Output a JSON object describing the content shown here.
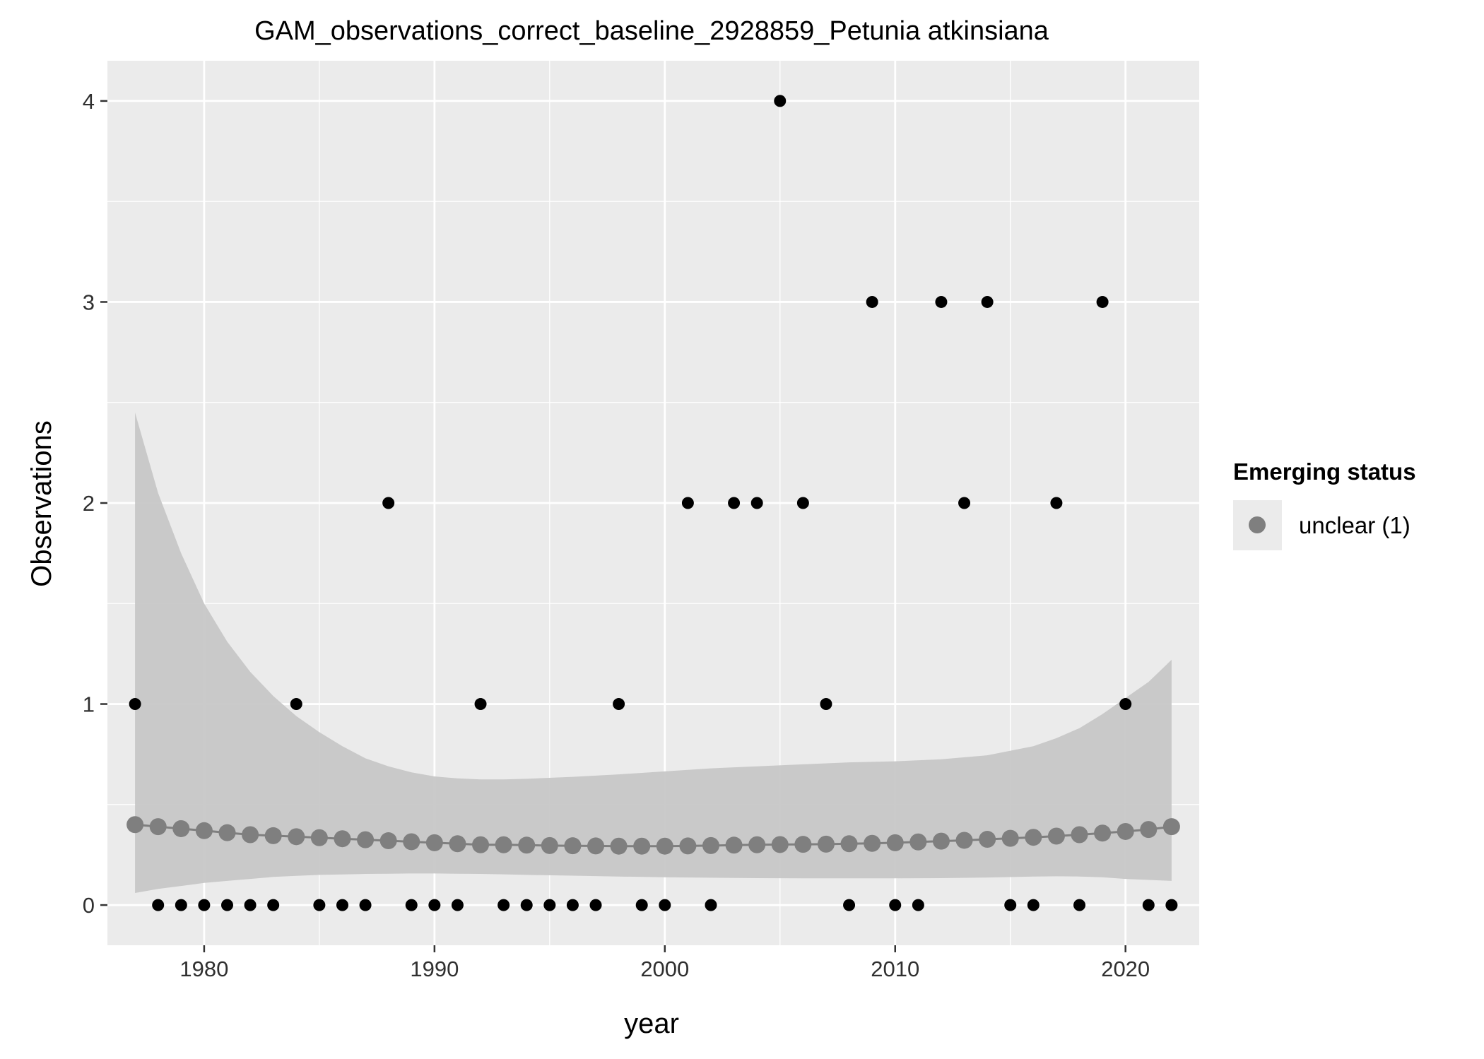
{
  "chart_data": {
    "type": "scatter",
    "title": "GAM_observations_correct_baseline_2928859_Petunia atkinsiana",
    "xlabel": "year",
    "ylabel": "Observations",
    "xlim": [
      1975.8,
      2023.2
    ],
    "ylim": [
      -0.2,
      4.2
    ],
    "x_ticks": [
      1980,
      1990,
      2000,
      2010,
      2020
    ],
    "y_ticks": [
      0,
      1,
      2,
      3,
      4
    ],
    "grid": true,
    "legend": {
      "title": "Emerging status",
      "position": "right",
      "entries": [
        "unclear (1)"
      ]
    },
    "observed": {
      "x": [
        1977,
        1978,
        1979,
        1980,
        1981,
        1982,
        1983,
        1984,
        1985,
        1986,
        1987,
        1988,
        1989,
        1990,
        1991,
        1992,
        1993,
        1994,
        1995,
        1996,
        1997,
        1998,
        1999,
        2000,
        2001,
        2002,
        2003,
        2004,
        2005,
        2006,
        2007,
        2008,
        2009,
        2010,
        2011,
        2012,
        2013,
        2014,
        2015,
        2016,
        2017,
        2018,
        2019,
        2020,
        2021,
        2022
      ],
      "y": [
        1,
        0,
        0,
        0,
        0,
        0,
        0,
        1,
        0,
        0,
        0,
        2,
        0,
        0,
        0,
        1,
        0,
        0,
        0,
        0,
        0,
        1,
        0,
        0,
        2,
        0,
        2,
        2,
        4,
        2,
        1,
        0,
        3,
        0,
        0,
        3,
        2,
        3,
        0,
        0,
        2,
        0,
        3,
        1,
        0,
        0
      ],
      "color": "#000000"
    },
    "fitted": {
      "name": "unclear (1)",
      "x": [
        1977,
        1978,
        1979,
        1980,
        1981,
        1982,
        1983,
        1984,
        1985,
        1986,
        1987,
        1988,
        1989,
        1990,
        1991,
        1992,
        1993,
        1994,
        1995,
        1996,
        1997,
        1998,
        1999,
        2000,
        2001,
        2002,
        2003,
        2004,
        2005,
        2006,
        2007,
        2008,
        2009,
        2010,
        2011,
        2012,
        2013,
        2014,
        2015,
        2016,
        2017,
        2018,
        2019,
        2020,
        2021,
        2022
      ],
      "y": [
        0.4,
        0.39,
        0.38,
        0.37,
        0.36,
        0.35,
        0.345,
        0.34,
        0.335,
        0.33,
        0.325,
        0.32,
        0.315,
        0.31,
        0.305,
        0.3,
        0.3,
        0.298,
        0.296,
        0.295,
        0.294,
        0.293,
        0.293,
        0.293,
        0.294,
        0.296,
        0.298,
        0.3,
        0.301,
        0.302,
        0.303,
        0.305,
        0.307,
        0.31,
        0.314,
        0.318,
        0.322,
        0.327,
        0.332,
        0.337,
        0.343,
        0.35,
        0.358,
        0.366,
        0.376,
        0.39
      ],
      "color": "#7f7f7f"
    },
    "ci_band": {
      "x": [
        1977,
        1978,
        1979,
        1980,
        1981,
        1982,
        1983,
        1984,
        1985,
        1986,
        1987,
        1988,
        1989,
        1990,
        1991,
        1992,
        1993,
        1994,
        1996,
        1998,
        2000,
        2002,
        2004,
        2006,
        2008,
        2010,
        2012,
        2014,
        2016,
        2017,
        2018,
        2019,
        2020,
        2021,
        2022
      ],
      "upper": [
        2.45,
        2.05,
        1.75,
        1.5,
        1.31,
        1.16,
        1.04,
        0.94,
        0.86,
        0.79,
        0.73,
        0.69,
        0.66,
        0.64,
        0.63,
        0.625,
        0.625,
        0.628,
        0.638,
        0.65,
        0.665,
        0.68,
        0.69,
        0.7,
        0.71,
        0.715,
        0.725,
        0.745,
        0.79,
        0.83,
        0.88,
        0.95,
        1.03,
        1.11,
        1.22
      ],
      "lower": [
        0.06,
        0.08,
        0.095,
        0.11,
        0.12,
        0.13,
        0.14,
        0.145,
        0.15,
        0.152,
        0.155,
        0.156,
        0.157,
        0.157,
        0.156,
        0.155,
        0.153,
        0.15,
        0.146,
        0.142,
        0.138,
        0.136,
        0.134,
        0.133,
        0.133,
        0.133,
        0.134,
        0.137,
        0.142,
        0.143,
        0.142,
        0.138,
        0.13,
        0.125,
        0.12
      ],
      "color": "#7f7f7f"
    },
    "colors": {
      "panel": "#ebebeb",
      "grid": "#ffffff",
      "band": "#c6c6c6"
    }
  }
}
